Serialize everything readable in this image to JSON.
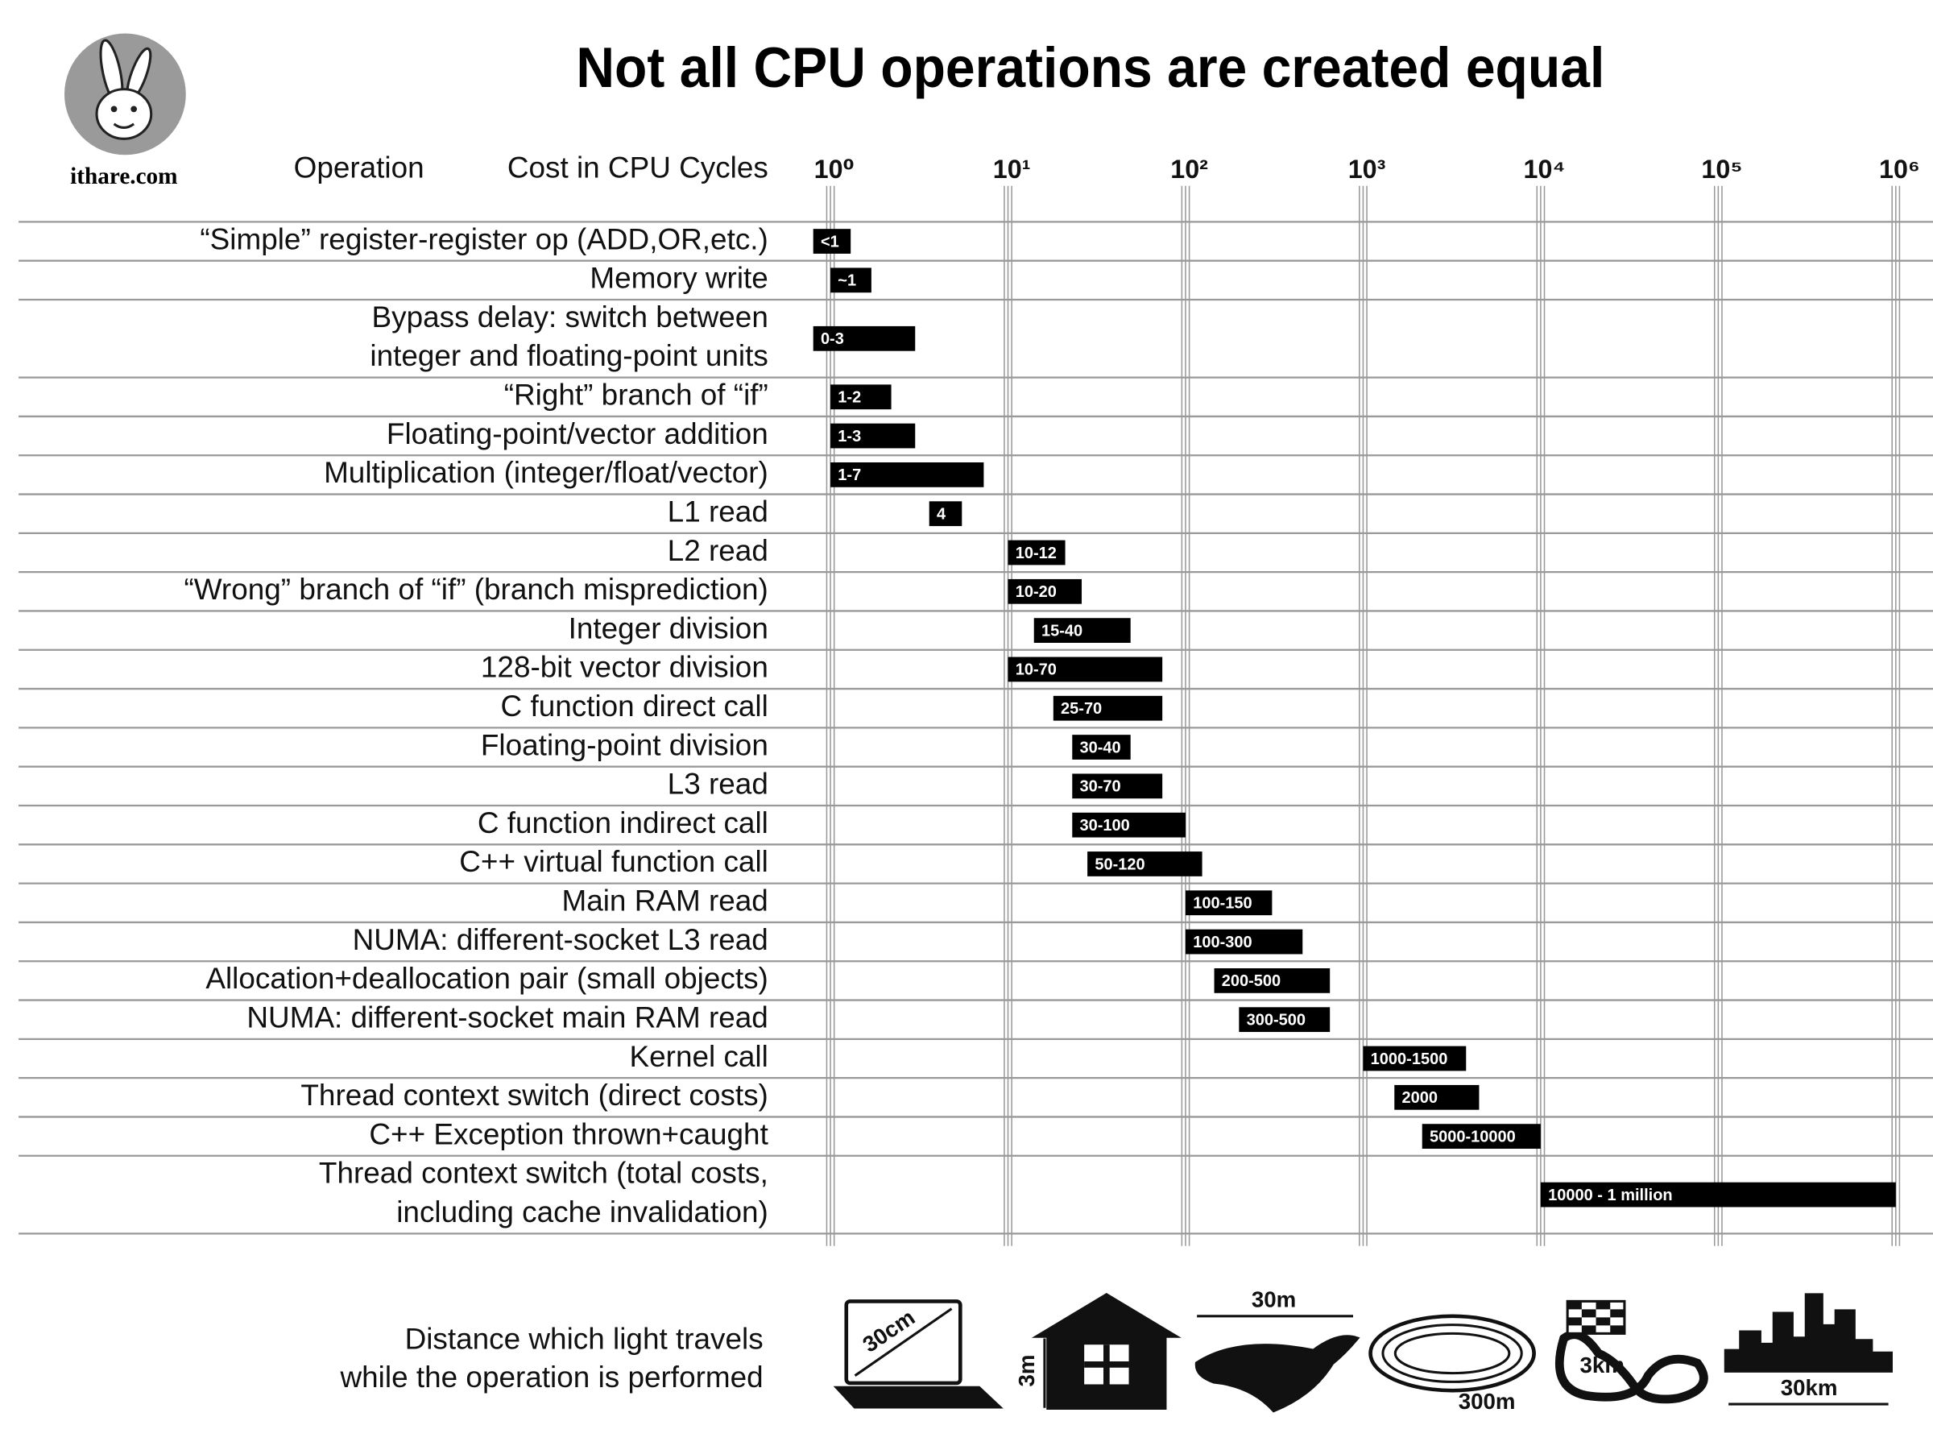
{
  "chart_data": {
    "type": "range-bar",
    "title": "Not all CPU operations are created equal",
    "site": "ithare.com",
    "header_left": "Operation",
    "header_right": "Cost in CPU Cycles",
    "log_scale": true,
    "grid": true,
    "color": "#000000",
    "xlim": [
      0.7,
      1620000
    ],
    "xticks": [
      {
        "value": 1,
        "label": "10⁰"
      },
      {
        "value": 10,
        "label": "10¹"
      },
      {
        "value": 100,
        "label": "10²"
      },
      {
        "value": 1000,
        "label": "10³"
      },
      {
        "value": 10000,
        "label": "10⁴"
      },
      {
        "value": 100000,
        "label": "10⁵"
      },
      {
        "value": 1000000,
        "label": "10⁶"
      }
    ],
    "categories": [
      [
        "“Simple” register-register op (ADD,OR,etc.)"
      ],
      [
        "Memory write"
      ],
      [
        "Bypass delay: switch between",
        "integer and floating-point units"
      ],
      [
        "“Right” branch of “if”"
      ],
      [
        "Floating-point/vector addition"
      ],
      [
        "Multiplication (integer/float/vector)"
      ],
      [
        "L1 read"
      ],
      [
        "L2 read"
      ],
      [
        "“Wrong” branch of “if” (branch misprediction)"
      ],
      [
        "Integer division"
      ],
      [
        "128-bit vector division"
      ],
      [
        "C function direct call"
      ],
      [
        "Floating-point division"
      ],
      [
        "L3 read"
      ],
      [
        "C function indirect call"
      ],
      [
        "C++ virtual function call"
      ],
      [
        "Main RAM read"
      ],
      [
        "NUMA: different-socket L3 read"
      ],
      [
        "Allocation+deallocation pair (small objects)"
      ],
      [
        "NUMA: different-socket main RAM read"
      ],
      [
        "Kernel call"
      ],
      [
        "Thread context switch (direct costs)"
      ],
      [
        "C++ Exception thrown+caught"
      ],
      [
        "Thread context switch (total costs,",
        "including cache invalidation)"
      ]
    ],
    "starts": [
      0.8,
      1,
      0.8,
      1,
      1,
      1,
      3.6,
      10,
      10,
      14,
      10,
      18,
      23,
      23,
      23,
      28,
      100,
      100,
      145,
      200,
      1000,
      1500,
      2150,
      10000
    ],
    "ends": [
      1.3,
      1.7,
      3,
      2.2,
      3,
      7.3,
      5.5,
      21,
      26,
      49,
      74,
      74,
      49,
      74,
      100,
      124,
      307,
      456,
      650,
      650,
      3800,
      4500,
      10000,
      1000000
    ],
    "value_labels": [
      "<1",
      "~1",
      "0-3",
      "1-2",
      "1-3",
      "1-7",
      "4",
      "10-12",
      "10-20",
      "15-40",
      "10-70",
      "25-70",
      "30-40",
      "30-70",
      "30-100",
      "50-120",
      "100-150",
      "100-300",
      "200-500",
      "300-500",
      "1000-1500",
      "2000",
      "5000-10000",
      "10000 - 1 million"
    ],
    "light_caption": [
      "Distance which light travels",
      "while the operation is performed"
    ],
    "distances": [
      "30cm",
      "3m",
      "30m",
      "300m",
      "3km",
      "30km"
    ]
  }
}
